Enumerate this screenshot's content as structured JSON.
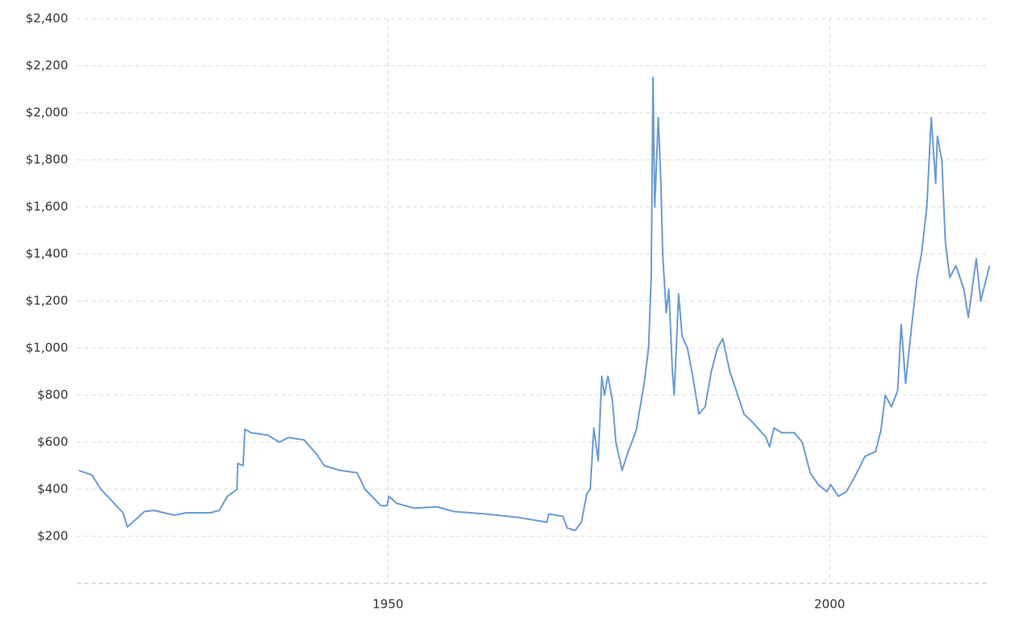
{
  "chart_data": {
    "type": "line",
    "color": "#6a9bd1",
    "grid": true,
    "x": [
      1915,
      1916.5,
      1917.5,
      1918.5,
      1920,
      1920.5,
      1921.7,
      1922.4,
      1923.5,
      1925.8,
      1927.2,
      1929.9,
      1930.9,
      1931.8,
      1932.2,
      1932.9,
      1933,
      1933.6,
      1933.8,
      1934.5,
      1936.4,
      1937.7,
      1938.7,
      1940.5,
      1941.9,
      1942.8,
      1944.6,
      1946.5,
      1947.4,
      1948.7,
      1949.2,
      1949.9,
      1950.1,
      1951,
      1952.9,
      1955.6,
      1957.5,
      1961.1,
      1964.8,
      1968,
      1968.2,
      1969.8,
      1970.3,
      1971.2,
      1971.9,
      1972.5,
      1972.9,
      1973.3,
      1973.8,
      1974.2,
      1974.5,
      1974.9,
      1975.4,
      1975.8,
      1976.5,
      1977.2,
      1978.1,
      1979,
      1979.5,
      1979.8,
      1980,
      1980.2,
      1980.6,
      1980.9,
      1981.1,
      1981.5,
      1981.8,
      1982.2,
      1982.4,
      1982.7,
      1982.9,
      1983.3,
      1983.9,
      1984.5,
      1985.2,
      1985.9,
      1986.6,
      1987.3,
      1987.9,
      1988.7,
      1989.6,
      1990.3,
      1991.4,
      1992.8,
      1993.2,
      1993.7,
      1994.6,
      1996,
      1996.9,
      1997.8,
      1998.7,
      1999.7,
      2000.1,
      2001,
      2001.9,
      2002.8,
      2004,
      2005.2,
      2005.8,
      2006.3,
      2007,
      2007.7,
      2008.1,
      2008.6,
      2009.3,
      2009.9,
      2010.4,
      2011,
      2011.5,
      2012,
      2012.2,
      2012.7,
      2013.1,
      2013.6,
      2014.3,
      2015.2,
      2015.7,
      2016.6,
      2017.1,
      2018.1
    ],
    "values": [
      480,
      460,
      400,
      360,
      300,
      240,
      280,
      305,
      310,
      290,
      300,
      300,
      310,
      370,
      380,
      400,
      510,
      500,
      655,
      640,
      630,
      600,
      620,
      610,
      550,
      500,
      480,
      470,
      400,
      350,
      330,
      330,
      370,
      340,
      320,
      325,
      305,
      295,
      280,
      260,
      295,
      285,
      235,
      225,
      260,
      380,
      400,
      660,
      520,
      880,
      800,
      880,
      780,
      600,
      480,
      560,
      650,
      850,
      1000,
      1300,
      2150,
      1600,
      1980,
      1700,
      1400,
      1150,
      1250,
      900,
      800,
      1050,
      1230,
      1050,
      1000,
      880,
      720,
      750,
      900,
      1000,
      1040,
      900,
      800,
      720,
      680,
      620,
      580,
      660,
      640,
      640,
      600,
      470,
      420,
      390,
      420,
      370,
      390,
      450,
      540,
      560,
      650,
      800,
      750,
      820,
      1100,
      850,
      1100,
      1300,
      1400,
      1600,
      1980,
      1700,
      1900,
      1800,
      1450,
      1300,
      1350,
      1250,
      1130,
      1380,
      1200,
      1350
    ],
    "xlim": [
      1914.8,
      2018.1
    ],
    "xticks": [
      1950,
      2000
    ],
    "ylim": [
      0,
      2400
    ],
    "yticks": [
      {
        "value": 200,
        "label": "$200"
      },
      {
        "value": 400,
        "label": "$400"
      },
      {
        "value": 600,
        "label": "$600"
      },
      {
        "value": 800,
        "label": "$800"
      },
      {
        "value": 1000,
        "label": "$1,000"
      },
      {
        "value": 1200,
        "label": "$1,200"
      },
      {
        "value": 1400,
        "label": "$1,400"
      },
      {
        "value": 1600,
        "label": "$1,600"
      },
      {
        "value": 1800,
        "label": "$1,800"
      },
      {
        "value": 2000,
        "label": "$2,000"
      },
      {
        "value": 2200,
        "label": "$2,200"
      },
      {
        "value": 2400,
        "label": "$2,400"
      }
    ]
  }
}
